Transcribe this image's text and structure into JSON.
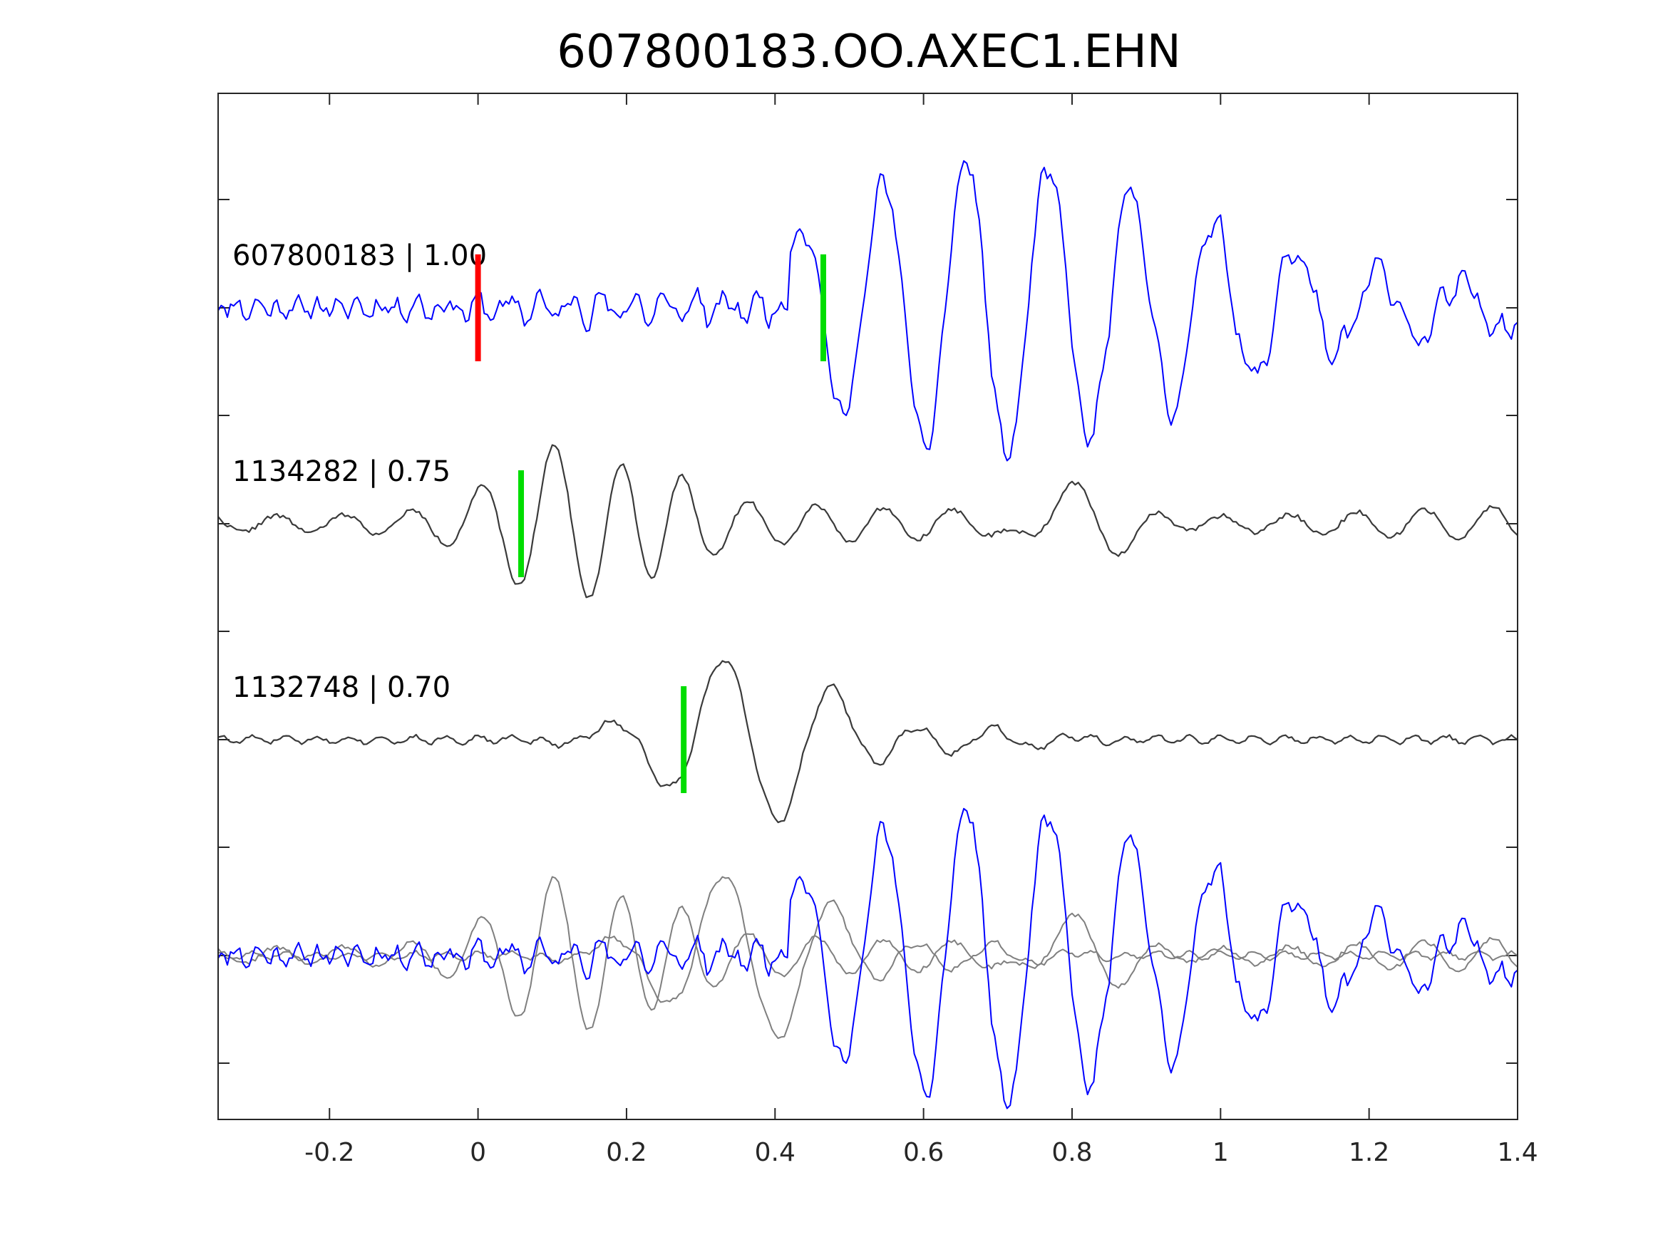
{
  "chart_data": {
    "type": "line",
    "title": "607800183.OO.AXEC1.EHN",
    "xlabel": "",
    "ylabel": "",
    "xlim": [
      -0.35,
      1.4
    ],
    "xticks": [
      -0.2,
      0,
      0.2,
      0.4,
      0.6,
      0.8,
      1,
      1.2,
      1.4
    ],
    "xtick_labels": [
      "-0.2",
      "0",
      "0.2",
      "0.4",
      "0.6",
      "0.8",
      "1",
      "1.2",
      "1.4"
    ],
    "y_tick_count": 9,
    "grid": false,
    "colors": {
      "main_trace": "#0000ff",
      "template_trace": "#3a3a3a",
      "overlay_template": "#7f7f7f",
      "origin_marker": "#ff0000",
      "pick_marker": "#00dd00"
    },
    "traces": [
      {
        "label": "607800183 | 1.00",
        "color": "#0000ff",
        "markers": [
          {
            "x": 0.0,
            "color": "#ff0000"
          },
          {
            "x": 0.465,
            "color": "#00dd00"
          }
        ]
      },
      {
        "label": "1134282 | 0.75",
        "color": "#3a3a3a",
        "markers": [
          {
            "x": 0.058,
            "color": "#00dd00"
          }
        ]
      },
      {
        "label": "1132748 | 0.70",
        "color": "#3a3a3a",
        "markers": [
          {
            "x": 0.277,
            "color": "#00dd00"
          }
        ]
      }
    ],
    "overlay": {
      "description_visible": false,
      "series": [
        "607800183",
        "1134282",
        "1132748"
      ]
    }
  }
}
